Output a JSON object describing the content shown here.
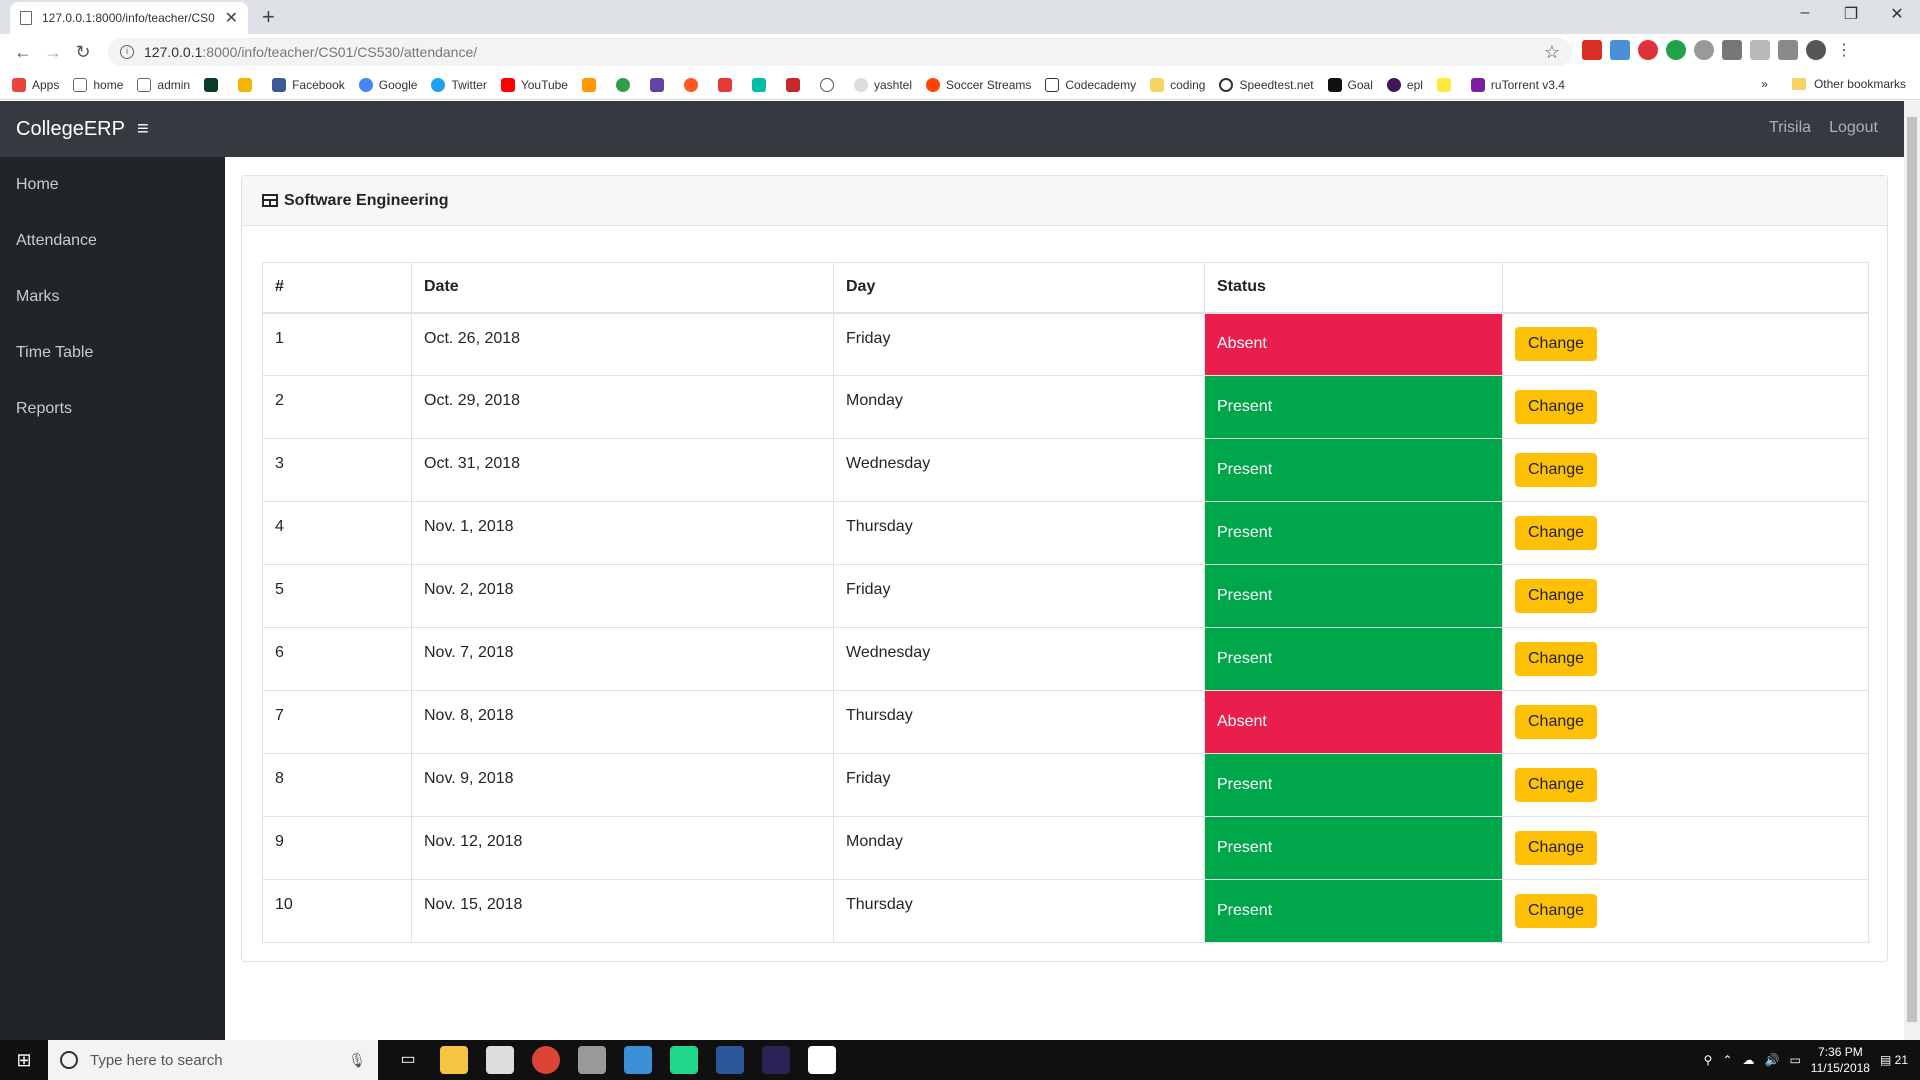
{
  "browser": {
    "tab_title": "127.0.0.1:8000/info/teacher/CS0",
    "url_host": "127.0.0.1",
    "url_path": ":8000/info/teacher/CS01/CS530/attendance/",
    "bookmarks": [
      "Apps",
      "home",
      "admin",
      "Facebook",
      "Google",
      "Twitter",
      "YouTube",
      "yashtel",
      "Soccer Streams",
      "Codecademy",
      "coding",
      "Speedtest.net",
      "Goal",
      "epl",
      "ruTorrent v3.4"
    ],
    "other_bookmarks": "Other bookmarks"
  },
  "app": {
    "brand": "CollegeERP",
    "user": "Trisila",
    "logout": "Logout"
  },
  "sidebar": {
    "items": [
      {
        "label": "Home"
      },
      {
        "label": "Attendance"
      },
      {
        "label": "Marks"
      },
      {
        "label": "Time Table"
      },
      {
        "label": "Reports"
      }
    ]
  },
  "card": {
    "title": "Software Engineering",
    "columns": [
      "#",
      "Date",
      "Day",
      "Status",
      ""
    ],
    "change_label": "Change",
    "rows": [
      {
        "num": "1",
        "date": "Oct. 26, 2018",
        "day": "Friday",
        "status": "Absent"
      },
      {
        "num": "2",
        "date": "Oct. 29, 2018",
        "day": "Monday",
        "status": "Present"
      },
      {
        "num": "3",
        "date": "Oct. 31, 2018",
        "day": "Wednesday",
        "status": "Present"
      },
      {
        "num": "4",
        "date": "Nov. 1, 2018",
        "day": "Thursday",
        "status": "Present"
      },
      {
        "num": "5",
        "date": "Nov. 2, 2018",
        "day": "Friday",
        "status": "Present"
      },
      {
        "num": "6",
        "date": "Nov. 7, 2018",
        "day": "Wednesday",
        "status": "Present"
      },
      {
        "num": "7",
        "date": "Nov. 8, 2018",
        "day": "Thursday",
        "status": "Absent"
      },
      {
        "num": "8",
        "date": "Nov. 9, 2018",
        "day": "Friday",
        "status": "Present"
      },
      {
        "num": "9",
        "date": "Nov. 12, 2018",
        "day": "Monday",
        "status": "Present"
      },
      {
        "num": "10",
        "date": "Nov. 15, 2018",
        "day": "Thursday",
        "status": "Present"
      }
    ]
  },
  "colors": {
    "absent": "#e91e4d",
    "present": "#00a74a",
    "change_button": "#ffc107"
  },
  "taskbar": {
    "search_placeholder": "Type here to search",
    "time": "7:36 PM",
    "date": "11/15/2018",
    "notification_count": "21"
  }
}
